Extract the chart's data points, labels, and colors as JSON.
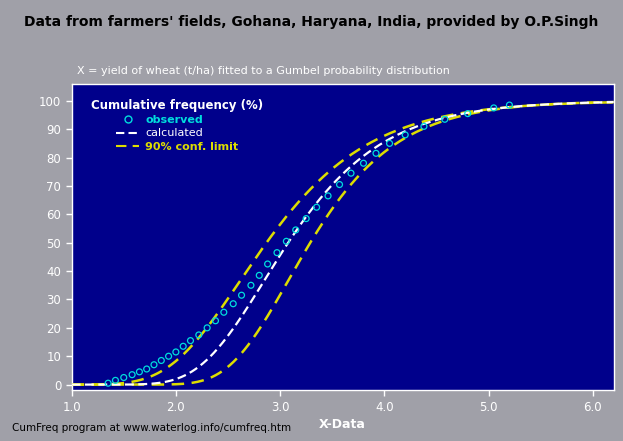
{
  "title": "Data from farmers' fields, Gohana, Haryana, India, provided by O.P.Singh",
  "subtitle": "X = yield of wheat (t/ha) fitted to a Gumbel probability distribution",
  "xlabel": "X-Data",
  "footer": "CumFreq program at www.waterlog.info/cumfreq.htm",
  "bg_outer": "#A0A0A8",
  "bg_inner": "#00008B",
  "xlim": [
    1.0,
    6.2
  ],
  "ylim": [
    -2,
    106
  ],
  "xticks": [
    1.0,
    2.0,
    3.0,
    4.0,
    5.0,
    6.0
  ],
  "yticks": [
    0,
    10,
    20,
    30,
    40,
    50,
    60,
    70,
    80,
    90,
    100
  ],
  "gumbel_mu": 2.85,
  "gumbel_beta": 0.62,
  "conf_mu_upper": 2.62,
  "conf_beta_upper": 0.68,
  "conf_mu_lower": 3.08,
  "conf_beta_lower": 0.57,
  "obs_x": [
    1.35,
    1.42,
    1.5,
    1.58,
    1.65,
    1.72,
    1.79,
    1.86,
    1.93,
    2.0,
    2.07,
    2.14,
    2.22,
    2.3,
    2.38,
    2.46,
    2.55,
    2.63,
    2.72,
    2.8,
    2.88,
    2.97,
    3.06,
    3.15,
    3.25,
    3.35,
    3.46,
    3.57,
    3.68,
    3.8,
    3.92,
    4.05,
    4.2,
    4.38,
    4.58,
    4.8,
    5.05,
    5.2
  ],
  "obs_y": [
    0.5,
    1.5,
    2.5,
    3.5,
    4.5,
    5.5,
    7.0,
    8.5,
    10.0,
    11.5,
    13.5,
    15.5,
    17.5,
    20.0,
    22.5,
    25.5,
    28.5,
    31.5,
    35.0,
    38.5,
    42.5,
    46.5,
    50.5,
    54.5,
    58.5,
    62.5,
    66.5,
    70.5,
    74.5,
    78.0,
    81.5,
    85.0,
    88.0,
    91.0,
    93.5,
    95.5,
    97.5,
    98.5
  ],
  "obs_color": "#00DDDD",
  "calc_color": "#FFFFFF",
  "conf_color": "#DDDD00",
  "title_color": "#000000",
  "subtitle_color": "#FFFFFF",
  "axis_color": "#FFFFFF",
  "tick_color": "#FFFFFF",
  "legend_text_color": "#FFFFFF",
  "observed_legend": "observed",
  "calculated_legend": "calculated",
  "conf_legend": "90% conf. limit",
  "legend_title": "Cumulative frequency (%)"
}
